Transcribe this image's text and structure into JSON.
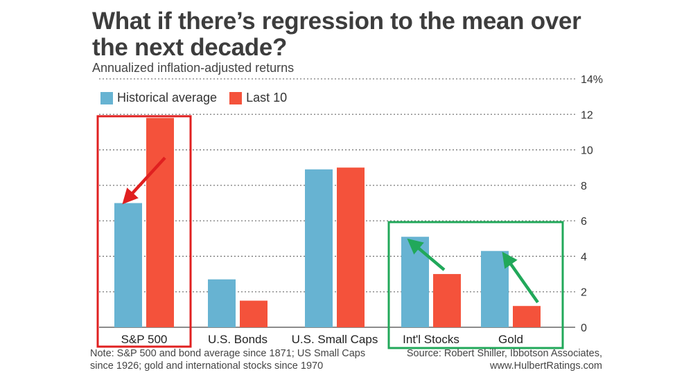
{
  "title": "What if there’s regression to the mean over the next decade?",
  "subtitle": "Annualized inflation-adjusted returns",
  "legend": [
    {
      "name": "Historical average",
      "color": "#67b3d2"
    },
    {
      "name": "Last 10",
      "color": "#f4523b"
    }
  ],
  "note": "Note: S&P 500 and bond average since 1871; US Small Caps since 1926; gold and international stocks since 1970",
  "source": "Source: Robert Shiller, Ibbotson Associates, www.HulbertRatings.com",
  "chart_data": {
    "type": "bar",
    "categories": [
      "S&P 500",
      "U.S. Bonds",
      "U.S. Small Caps",
      "Int'l Stocks",
      "Gold"
    ],
    "series": [
      {
        "name": "Historical average",
        "values": [
          7.0,
          2.7,
          8.9,
          5.1,
          4.3
        ],
        "color": "#67b3d2"
      },
      {
        "name": "Last 10",
        "values": [
          11.8,
          1.5,
          9.0,
          3.0,
          1.2
        ],
        "color": "#f4523b"
      }
    ],
    "ylim": [
      0,
      14
    ],
    "yticks": [
      "0",
      "2",
      "4",
      "6",
      "8",
      "10",
      "12",
      "14%"
    ],
    "grid": true,
    "legend_position": "top-left",
    "annotations": {
      "red_box_categories": [
        "S&P 500"
      ],
      "green_box_categories": [
        "Int'l Stocks",
        "Gold"
      ],
      "red_box_color": "#e02020",
      "green_box_color": "#21a85a"
    }
  }
}
